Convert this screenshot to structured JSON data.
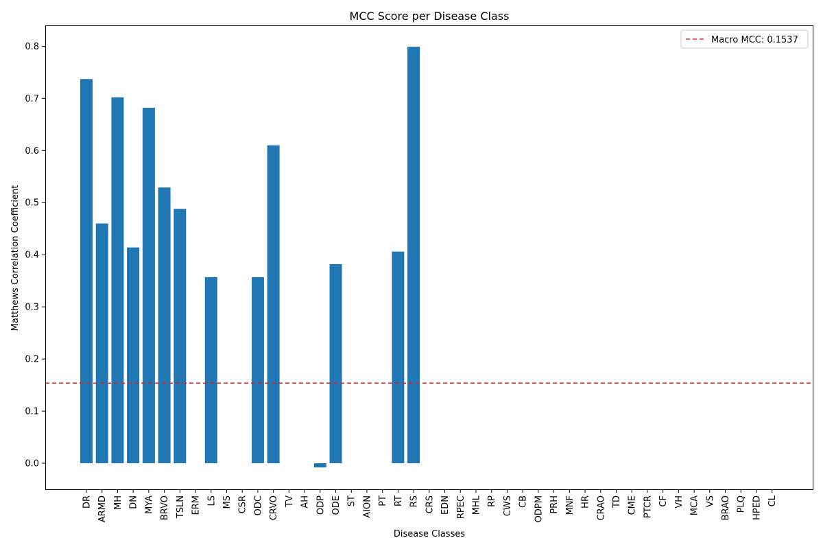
{
  "chart_data": {
    "type": "bar",
    "title": "MCC Score per Disease Class",
    "xlabel": "Disease Classes",
    "ylabel": "Matthews Correlation Coefficient",
    "ylim": [
      -0.05,
      0.84
    ],
    "yticks": [
      0.0,
      0.1,
      0.2,
      0.3,
      0.4,
      0.5,
      0.6,
      0.7,
      0.8
    ],
    "ytick_labels": [
      "0.0",
      "0.1",
      "0.2",
      "0.3",
      "0.4",
      "0.5",
      "0.6",
      "0.7",
      "0.8"
    ],
    "grid": false,
    "legend_position": "top-right",
    "bar_color": "#1f77b4",
    "categories": [
      "DR",
      "ARMD",
      "MH",
      "DN",
      "MYA",
      "BRVO",
      "TSLN",
      "ERM",
      "LS",
      "MS",
      "CSR",
      "ODC",
      "CRVO",
      "TV",
      "AH",
      "ODP",
      "ODE",
      "ST",
      "AION",
      "PT",
      "RT",
      "RS",
      "CRS",
      "EDN",
      "RPEC",
      "MHL",
      "RP",
      "CWS",
      "CB",
      "ODPM",
      "PRH",
      "MNF",
      "HR",
      "CRAO",
      "TD",
      "CME",
      "PTCR",
      "CF",
      "VH",
      "MCA",
      "VS",
      "BRAO",
      "PLQ",
      "HPED",
      "CL"
    ],
    "values": [
      0.737,
      0.46,
      0.702,
      0.414,
      0.682,
      0.529,
      0.488,
      0.0,
      0.357,
      0.0,
      0.0,
      0.357,
      0.61,
      0.0,
      0.0,
      -0.008,
      0.382,
      0.0,
      0.0,
      0.0,
      0.406,
      0.799,
      0.0,
      0.0,
      0.0,
      0.0,
      0.0,
      0.0,
      0.0,
      0.0,
      0.0,
      0.0,
      0.0,
      0.0,
      0.0,
      0.0,
      0.0,
      0.0,
      0.0,
      0.0,
      0.0,
      0.0,
      0.0,
      0.0,
      0.0
    ],
    "reference_line": {
      "label": "Macro MCC: 0.1537",
      "value": 0.1537,
      "color": "#d62728",
      "style": "dashed"
    }
  }
}
